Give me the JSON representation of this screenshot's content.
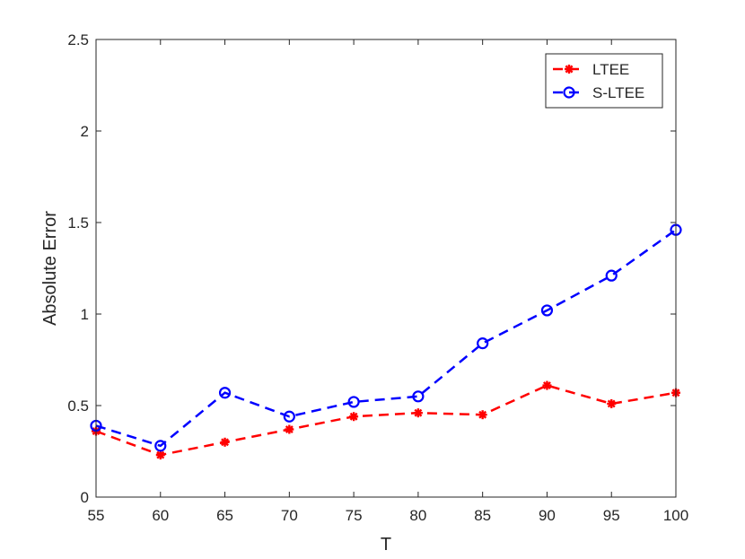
{
  "chart_data": {
    "type": "line",
    "title": "",
    "xlabel": "T",
    "ylabel": "Absolute Error",
    "xlim": [
      55,
      100
    ],
    "ylim": [
      0,
      2.5
    ],
    "x_ticks": [
      55,
      60,
      65,
      70,
      75,
      80,
      85,
      90,
      95,
      100
    ],
    "y_ticks": [
      0,
      0.5,
      1,
      1.5,
      2,
      2.5
    ],
    "y_tick_labels": [
      "0",
      "0.5",
      "1",
      "1.5",
      "2",
      "2.5"
    ],
    "grid": false,
    "legend_position": "top-right",
    "x": [
      55,
      60,
      65,
      70,
      75,
      80,
      85,
      90,
      95,
      100
    ],
    "series": [
      {
        "name": "LTEE",
        "color": "#ff0000",
        "marker": "asterisk",
        "line_style": "dashed",
        "values": [
          0.36,
          0.23,
          0.3,
          0.37,
          0.44,
          0.46,
          0.45,
          0.61,
          0.51,
          0.57
        ]
      },
      {
        "name": "S-LTEE",
        "color": "#0000ff",
        "marker": "circle",
        "line_style": "dashed",
        "values": [
          0.39,
          0.28,
          0.57,
          0.44,
          0.52,
          0.55,
          0.84,
          1.02,
          1.21,
          1.46
        ]
      }
    ]
  }
}
